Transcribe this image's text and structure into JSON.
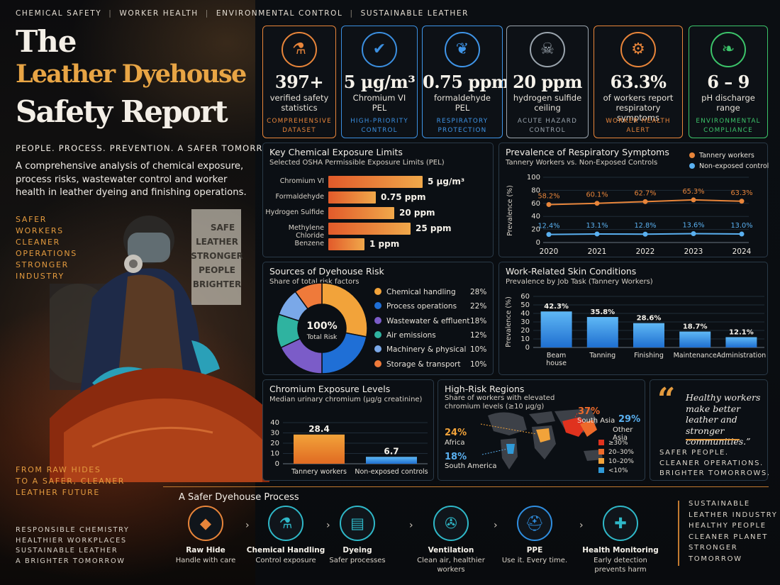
{
  "nav": [
    "CHEMICAL SAFETY",
    "WORKER HEALTH",
    "ENVIRONMENTAL CONTROL",
    "SUSTAINABLE LEATHER"
  ],
  "title": {
    "line1": "The",
    "line2": "Leather Dyehouse",
    "line3": "Safety Report"
  },
  "tagline": "PEOPLE. PROCESS. PREVENTION. A SAFER TOMORROW.",
  "intro": "A comprehensive analysis of chemical exposure, process risks, wastewater control and worker health in leather dyeing and finishing operations.",
  "safer_list": [
    "SAFER",
    "WORKERS",
    "CLEANER",
    "OPERATIONS",
    "STRONGER",
    "INDUSTRY"
  ],
  "sign_lines": [
    "SAFE",
    "LEATHER",
    "STRONGER",
    "PEOPLE",
    "BRIGHTER"
  ],
  "raw_hides": [
    "FROM RAW HIDES",
    "TO A SAFER, CLEANER",
    "LEATHER FUTURE"
  ],
  "resp_list": [
    "RESPONSIBLE CHEMISTRY",
    "HEALTHIER WORKPLACES",
    "SUSTAINABLE LEATHER",
    "A BRIGHTER TOMORROW"
  ],
  "stats": [
    {
      "icon": "flask-icon",
      "value": "397+",
      "desc": "verified safety statistics",
      "tag": "COMPREHENSIVE DATASET",
      "color": "#e8853a"
    },
    {
      "icon": "shield-check-icon",
      "value": "5 µg/m³",
      "desc": "Chromium VI PEL",
      "tag": "HIGH-PRIORITY CONTROL",
      "color": "#3b8fe0"
    },
    {
      "icon": "lungs-icon",
      "value": "0.75 ppm",
      "desc": "formaldehyde PEL",
      "tag": "RESPIRATORY PROTECTION",
      "color": "#3f95e8"
    },
    {
      "icon": "skull-icon",
      "value": "20 ppm",
      "desc": "hydrogen sulfide ceiling",
      "tag": "ACUTE HAZARD CONTROL",
      "color": "#9aa4ad"
    },
    {
      "icon": "gear-icon",
      "value": "63.3%",
      "desc": "of workers report respiratory symptoms",
      "tag": "WORKER HEALTH ALERT",
      "color": "#e8853a"
    },
    {
      "icon": "leaf-icon",
      "value": "6 – 9",
      "desc": "pH discharge range",
      "tag": "ENVIRONMENTAL COMPLIANCE",
      "color": "#3cc46a"
    }
  ],
  "exposure": {
    "title": "Key Chemical Exposure Limits",
    "subtitle": "Selected OSHA Permissible Exposure Limits (PEL)",
    "chart_data": {
      "type": "bar",
      "orientation": "horizontal",
      "categories": [
        "Chromium VI",
        "Formaldehyde",
        "Hydrogen Sulfide",
        "Methylene Chloride",
        "Benzene"
      ],
      "value_labels": [
        "5 µg/m³",
        "0.75 ppm",
        "20 ppm",
        "25 ppm",
        "1 ppm"
      ],
      "bar_length": [
        1.0,
        0.5,
        0.7,
        0.87,
        0.38
      ]
    }
  },
  "respiratory": {
    "title": "Prevalence of Respiratory Symptoms",
    "subtitle": "Tannery Workers vs. Non-Exposed Controls",
    "chart_data": {
      "type": "line",
      "x": [
        "2020",
        "2021",
        "2022",
        "2023",
        "2024"
      ],
      "ylabel": "Prevalence (%)",
      "ylim": [
        0,
        100
      ],
      "yticks": [
        0,
        20,
        40,
        60,
        80,
        100
      ],
      "series": [
        {
          "name": "Tannery workers",
          "values": [
            58.2,
            60.1,
            62.7,
            65.3,
            63.3
          ],
          "labels": [
            "58.2%",
            "60.1%",
            "62.7%",
            "65.3%",
            "63.3%"
          ],
          "color": "#e8853a"
        },
        {
          "name": "Non-exposed controls",
          "values": [
            12.4,
            13.1,
            12.8,
            13.6,
            13.0
          ],
          "labels": [
            "12.4%",
            "13.1%",
            "12.8%",
            "13.6%",
            "13.0%"
          ],
          "color": "#5ab0f0"
        }
      ]
    }
  },
  "sources": {
    "title": "Sources of Dyehouse Risk",
    "subtitle": "Share of total risk factors",
    "center_value": "100%",
    "center_label": "Total Risk",
    "chart_data": {
      "type": "pie",
      "donut": true,
      "labels": [
        "Chemical handling",
        "Process operations",
        "Wastewater & effluent",
        "Air emissions",
        "Machinery & physical",
        "Storage & transport"
      ],
      "values": [
        28,
        22,
        18,
        12,
        10,
        10
      ],
      "value_labels": [
        "28%",
        "22%",
        "18%",
        "12%",
        "10%",
        "10%"
      ],
      "colors": [
        "#f2a33a",
        "#1f6fd6",
        "#7b5cc8",
        "#2fb3a0",
        "#7aa8e8",
        "#ef7a3a"
      ]
    }
  },
  "skin": {
    "title": "Work-Related Skin Conditions",
    "subtitle": "Prevalence by Job Task (Tannery Workers)",
    "chart_data": {
      "type": "bar",
      "categories": [
        "Beam house",
        "Tanning",
        "Finishing",
        "Maintenance",
        "Administration"
      ],
      "values": [
        42.3,
        35.8,
        28.6,
        18.7,
        12.1
      ],
      "value_labels": [
        "42.3%",
        "35.8%",
        "28.6%",
        "18.7%",
        "12.1%"
      ],
      "ylabel": "Prevalence (%)",
      "ylim": [
        0,
        60
      ],
      "yticks": [
        0,
        10,
        20,
        30,
        40,
        50,
        60
      ]
    }
  },
  "chromium": {
    "title": "Chromium Exposure Levels",
    "subtitle": "Median urinary chromium (µg/g creatinine)",
    "chart_data": {
      "type": "bar",
      "categories": [
        "Tannery workers",
        "Non-exposed controls"
      ],
      "values": [
        28.4,
        6.7
      ],
      "value_labels": [
        "28.4",
        "6.7"
      ],
      "ylim": [
        0,
        40
      ],
      "yticks": [
        0,
        10,
        20,
        30,
        40
      ]
    }
  },
  "regions": {
    "title": "High-Risk Regions",
    "subtitle": "Share of workers with elevated chromium levels (≥10 µg/g)",
    "callouts": [
      {
        "value": "37%",
        "label": "South Asia"
      },
      {
        "value": "29%",
        "label": "Other Asia"
      },
      {
        "value": "24%",
        "label": "Africa"
      },
      {
        "value": "18%",
        "label": "South America"
      }
    ],
    "legend": [
      {
        "label": "≥30%",
        "color": "#e0321e"
      },
      {
        "label": "20–30%",
        "color": "#ee6a2a"
      },
      {
        "label": "10–20%",
        "color": "#f2a33a"
      },
      {
        "label": "<10%",
        "color": "#2f9ad8"
      }
    ]
  },
  "quote": {
    "text": "Healthy workers make better leather and stronger communities.”",
    "sub": [
      "SAFER PEOPLE.",
      "CLEANER OPERATIONS.",
      "BRIGHTER TOMORROWS."
    ]
  },
  "process": {
    "title": "A Safer Dyehouse Process",
    "steps": [
      {
        "name": "Raw Hide",
        "desc": "Handle with care",
        "icon": "hide-icon",
        "color": "#e8853a"
      },
      {
        "name": "Chemical Handling",
        "desc": "Control exposure",
        "icon": "flask-icon",
        "color": "#2fb8c8"
      },
      {
        "name": "Dyeing",
        "desc": "Safer processes",
        "icon": "drum-icon",
        "color": "#2fb8c8"
      },
      {
        "name": "Ventilation",
        "desc": "Clean air, healthier workers",
        "icon": "fan-icon",
        "color": "#2fb8c8"
      },
      {
        "name": "PPE",
        "desc": "Use it. Every time.",
        "icon": "hard-hat-icon",
        "color": "#2f8ee0"
      },
      {
        "name": "Health Monitoring",
        "desc": "Early detection prevents harm",
        "icon": "medical-kit-icon",
        "color": "#2fb8c8"
      }
    ]
  },
  "right_list": [
    "SUSTAINABLE",
    "LEATHER INDUSTRY",
    "HEALTHY PEOPLE",
    "CLEANER PLANET",
    "STRONGER",
    "TOMORROW"
  ]
}
